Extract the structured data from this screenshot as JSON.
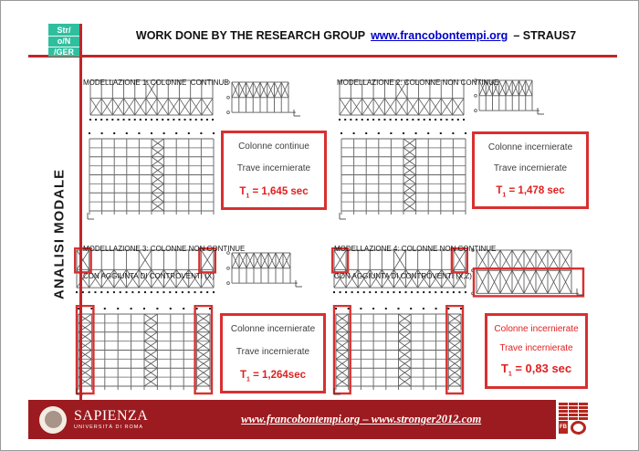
{
  "title": {
    "prefix": "WORK DONE BY THE RESEARCH GROUP",
    "link": "www.francobontempi.org",
    "suffix": "– STRAUS7"
  },
  "logo": {
    "line1": "Str/",
    "line2": "o/N",
    "line3": "/GER"
  },
  "sidebar": {
    "label": "ANALISI MODALE"
  },
  "quadrants": [
    {
      "label": "MODELLAZIONE 1: COLONNE  CONTINUE",
      "label2": "",
      "box": {
        "line1": "Colonne continue",
        "line2": "Trave incernierate",
        "t_pre": "T",
        "t_sub": "1",
        "t_post": " = 1,645 sec"
      }
    },
    {
      "label": "MODELLAZIONE 2: COLONNE NON CONTINUE",
      "label2": "",
      "box": {
        "line1": "Colonne incernierate",
        "line2": "Trave incernierate",
        "t_pre": "T",
        "t_sub": "1",
        "t_post": " = 1,478 sec"
      }
    },
    {
      "label": "MODELLAZIONE 3: COLONNE NON CONTINUE",
      "label2": "CON AGGIUNTA DI CONTROVENTI (X)",
      "box": {
        "line1": "Colonne incernierate",
        "line2": "Trave incernierate",
        "t_pre": "T",
        "t_sub": "1",
        "t_post": " = 1,264sec"
      }
    },
    {
      "label": "MODELLAZIONE 4: COLONNE NON CONTINUE",
      "label2": "CON AGGIUNTA DI CONTROVENTI (X,Z)",
      "box": {
        "line1": "Colonne incernierate",
        "line2": "Trave incernierate",
        "t_pre": "T",
        "t_sub": "1",
        "t_post": " = 0,83 sec"
      }
    }
  ],
  "footer": {
    "brand": "SAPIENZA",
    "brand_sub": "UNIVERSITÀ DI ROMA",
    "links": "www.francobontempi.org – www.stronger2012.com",
    "seal_letters": "FB"
  },
  "colors": {
    "accent_red": "#c0262a",
    "highlight_red": "#d83030",
    "footer_bg": "#9b1b20",
    "logo_teal": "#2fbf9e",
    "link_blue": "#0000cc",
    "result_red": "#e02020"
  },
  "diagrams": {
    "q1": {
      "elevA": {
        "kind": "elevA",
        "cols": 11,
        "topX": [
          5
        ],
        "red": []
      },
      "elevB": {
        "kind": "elevB",
        "cols": 8,
        "rows": 1,
        "redBottom": false
      },
      "grid": {
        "kind": "grid",
        "cols": 10,
        "rows": 8,
        "xcols": [
          5
        ],
        "redcols": []
      }
    },
    "q2": {
      "elevA": {
        "kind": "elevA",
        "cols": 11,
        "topX": [
          5
        ],
        "red": []
      },
      "elevB": {
        "kind": "elevB",
        "cols": 8,
        "rows": 1,
        "redBottom": false
      },
      "grid": {
        "kind": "grid",
        "cols": 10,
        "rows": 8,
        "xcols": [
          5
        ],
        "redcols": []
      }
    },
    "q3": {
      "elevA": {
        "kind": "elevA",
        "cols": 11,
        "topX": [
          0,
          5,
          10
        ],
        "red": [
          0,
          10
        ]
      },
      "elevB": {
        "kind": "elevB",
        "cols": 8,
        "rows": 1,
        "redBottom": false
      },
      "grid": {
        "kind": "grid",
        "cols": 10,
        "rows": 8,
        "xcols": [
          0,
          5,
          9
        ],
        "redcols": [
          0,
          9
        ]
      }
    },
    "q4": {
      "elevA": {
        "kind": "elevA",
        "cols": 11,
        "topX": [
          0,
          5,
          10
        ],
        "red": [
          0,
          10
        ]
      },
      "elevB": {
        "kind": "elevB",
        "cols": 8,
        "rows": 2,
        "redBottom": true
      },
      "grid": {
        "kind": "grid",
        "cols": 10,
        "rows": 8,
        "xcols": [
          0,
          5,
          9
        ],
        "redcols": [
          0,
          9
        ]
      }
    }
  }
}
